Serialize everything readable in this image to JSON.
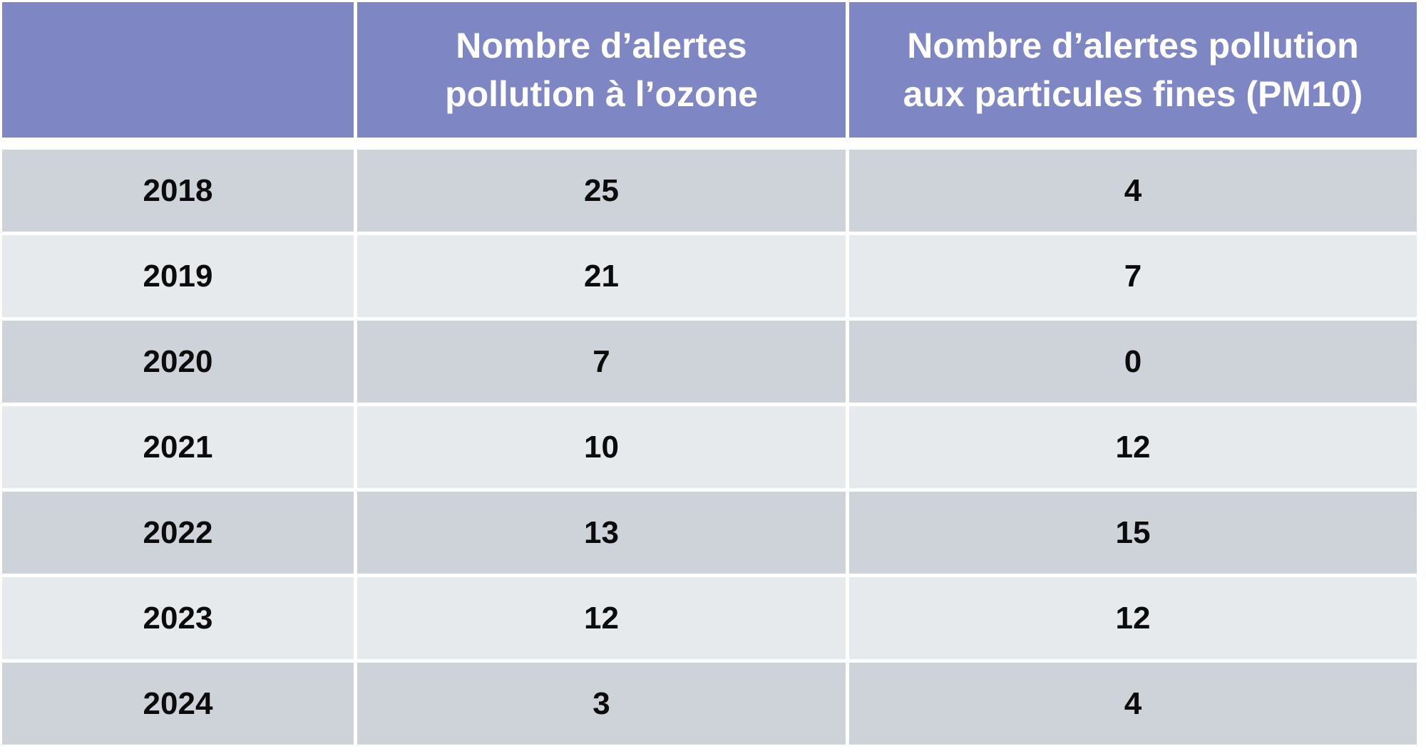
{
  "colors": {
    "header_bg": "#7E86C4",
    "header_text": "#FFFFFF",
    "row_dark_bg": "#CED2D9",
    "row_light_bg": "#E7EAEC",
    "body_text": "#0B0B0B",
    "divider": "#FFFFFF"
  },
  "table": {
    "headers": {
      "year": "",
      "ozone_line1": "Nombre d’alertes",
      "ozone_line2": "pollution à l’ozone",
      "pm10_line1": "Nombre d’alertes pollution",
      "pm10_line2": "aux particules fines (PM10)"
    },
    "rows": [
      {
        "year": "2018",
        "ozone": "25",
        "pm10": "4"
      },
      {
        "year": "2019",
        "ozone": "21",
        "pm10": "7"
      },
      {
        "year": "2020",
        "ozone": "7",
        "pm10": "0"
      },
      {
        "year": "2021",
        "ozone": "10",
        "pm10": "12"
      },
      {
        "year": "2022",
        "ozone": "13",
        "pm10": "15"
      },
      {
        "year": "2023",
        "ozone": "12",
        "pm10": "12"
      },
      {
        "year": "2024",
        "ozone": "3",
        "pm10": "4"
      }
    ]
  },
  "chart_data": {
    "type": "table",
    "title": "",
    "categories": [
      "2018",
      "2019",
      "2020",
      "2021",
      "2022",
      "2023",
      "2024"
    ],
    "series": [
      {
        "name": "Nombre d’alertes pollution à l’ozone",
        "values": [
          25,
          21,
          7,
          10,
          13,
          12,
          3
        ]
      },
      {
        "name": "Nombre d’alertes pollution aux particules fines (PM10)",
        "values": [
          4,
          7,
          0,
          12,
          15,
          12,
          4
        ]
      }
    ]
  }
}
